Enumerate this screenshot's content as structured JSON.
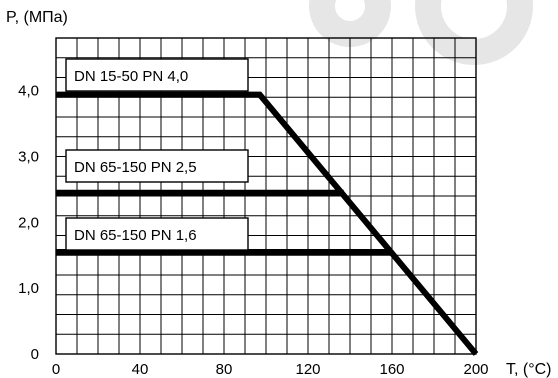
{
  "colors": {
    "line": "#000000",
    "grid": "#000000",
    "background": "#ffffff",
    "watermark": "#e6e6e6"
  },
  "chart_data": {
    "type": "line",
    "ylabel": "P, (МПа)",
    "xlabel": "T, (°C)",
    "xlim": [
      0,
      200
    ],
    "ylim": [
      0,
      4.8
    ],
    "grid": true,
    "x_ticks": [
      0,
      40,
      80,
      120,
      160,
      200
    ],
    "x_tick_labels": [
      "0",
      "40",
      "80",
      "120",
      "160",
      "200"
    ],
    "y_ticks": [
      0,
      1,
      2,
      3,
      4
    ],
    "y_tick_labels": [
      "0",
      "1,0",
      "2,0",
      "3,0",
      "4,0"
    ],
    "series": [
      {
        "name": "DN 15-50  PN 4,0",
        "x": [
          0,
          97,
          200
        ],
        "y": [
          3.94,
          3.94,
          0
        ]
      },
      {
        "name": "DN 65-150  PN 2,5",
        "x": [
          0,
          137
        ],
        "y": [
          2.45,
          2.45
        ]
      },
      {
        "name": "DN 65-150  PN 1,6",
        "x": [
          0,
          160
        ],
        "y": [
          1.55,
          1.55
        ]
      }
    ]
  }
}
